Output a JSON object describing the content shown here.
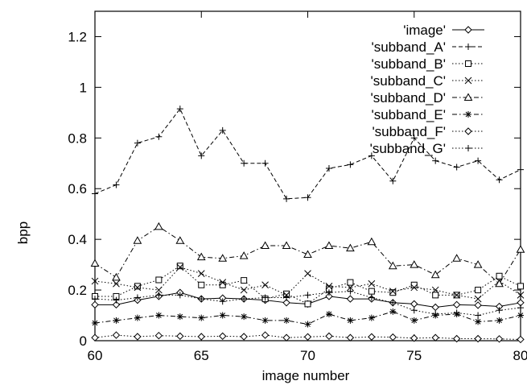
{
  "chart_data": {
    "type": "line",
    "title": "",
    "xlabel": "image number",
    "ylabel": "bpp",
    "xlim": [
      60,
      80
    ],
    "ylim": [
      0,
      1.3
    ],
    "xticks": [
      60,
      65,
      70,
      75,
      80
    ],
    "yticks": [
      0,
      0.2,
      0.4,
      0.6,
      0.8,
      1,
      1.2
    ],
    "xtick_labels": [
      "60",
      "65",
      "70",
      "75",
      "80"
    ],
    "ytick_labels": [
      "0",
      "0.2",
      "0.4",
      "0.6",
      "0.8",
      "1",
      "1.2"
    ],
    "grid": false,
    "legend_position": "top-right",
    "x": [
      60,
      61,
      62,
      63,
      64,
      65,
      66,
      67,
      68,
      69,
      70,
      71,
      72,
      73,
      74,
      75,
      76,
      77,
      78,
      79,
      80
    ],
    "series": [
      {
        "name": "'image'",
        "marker": "diamond-open",
        "dash": "solid",
        "values": [
          0.142,
          0.142,
          0.16,
          0.175,
          0.19,
          0.165,
          0.168,
          0.165,
          0.16,
          0.15,
          0.145,
          0.175,
          0.165,
          0.165,
          0.15,
          0.145,
          0.132,
          0.142,
          0.14,
          0.135,
          0.15
        ]
      },
      {
        "name": "'subband_A'",
        "marker": "plus",
        "dash": "dashed",
        "values": [
          0.58,
          0.615,
          0.78,
          0.805,
          0.915,
          0.73,
          0.83,
          0.7,
          0.7,
          0.56,
          0.565,
          0.68,
          0.695,
          0.73,
          0.63,
          0.8,
          0.71,
          0.685,
          0.71,
          0.635,
          0.675
        ]
      },
      {
        "name": "'subband_B'",
        "marker": "square-open",
        "dash": "dotted",
        "values": [
          0.175,
          0.175,
          0.215,
          0.24,
          0.295,
          0.22,
          0.22,
          0.238,
          0.165,
          0.185,
          0.145,
          0.205,
          0.23,
          0.195,
          0.19,
          0.22,
          0.18,
          0.18,
          0.2,
          0.255,
          0.215
        ]
      },
      {
        "name": "'subband_C'",
        "marker": "cross",
        "dash": "dotted",
        "values": [
          0.235,
          0.225,
          0.21,
          0.2,
          0.29,
          0.265,
          0.23,
          0.2,
          0.22,
          0.18,
          0.265,
          0.215,
          0.21,
          0.225,
          0.195,
          0.21,
          0.2,
          0.18,
          0.165,
          0.235,
          0.18
        ]
      },
      {
        "name": "'subband_D'",
        "marker": "triangle-open",
        "dash": "dashdot",
        "values": [
          0.305,
          0.25,
          0.395,
          0.45,
          0.395,
          0.33,
          0.325,
          0.335,
          0.375,
          0.375,
          0.34,
          0.375,
          0.365,
          0.39,
          0.295,
          0.3,
          0.26,
          0.325,
          0.3,
          0.225,
          0.36
        ]
      },
      {
        "name": "'subband_E'",
        "marker": "asterisk",
        "dash": "dashdot",
        "values": [
          0.07,
          0.08,
          0.09,
          0.1,
          0.095,
          0.09,
          0.1,
          0.095,
          0.08,
          0.08,
          0.065,
          0.105,
          0.08,
          0.09,
          0.115,
          0.08,
          0.1,
          0.105,
          0.075,
          0.08,
          0.1
        ]
      },
      {
        "name": "'subband_F'",
        "marker": "diamond-open",
        "dash": "dotted",
        "values": [
          0.012,
          0.022,
          0.016,
          0.02,
          0.018,
          0.016,
          0.018,
          0.016,
          0.022,
          0.012,
          0.015,
          0.018,
          0.012,
          0.015,
          0.014,
          0.01,
          0.012,
          0.008,
          0.008,
          0.007,
          0.005
        ]
      },
      {
        "name": "'subband_G'",
        "marker": "plus",
        "dash": "dotted",
        "values": [
          0.165,
          0.16,
          0.17,
          0.18,
          0.18,
          0.165,
          0.155,
          0.165,
          0.17,
          0.17,
          0.18,
          0.19,
          0.195,
          0.17,
          0.15,
          0.12,
          0.105,
          0.11,
          0.1,
          0.12,
          0.13
        ]
      }
    ]
  }
}
